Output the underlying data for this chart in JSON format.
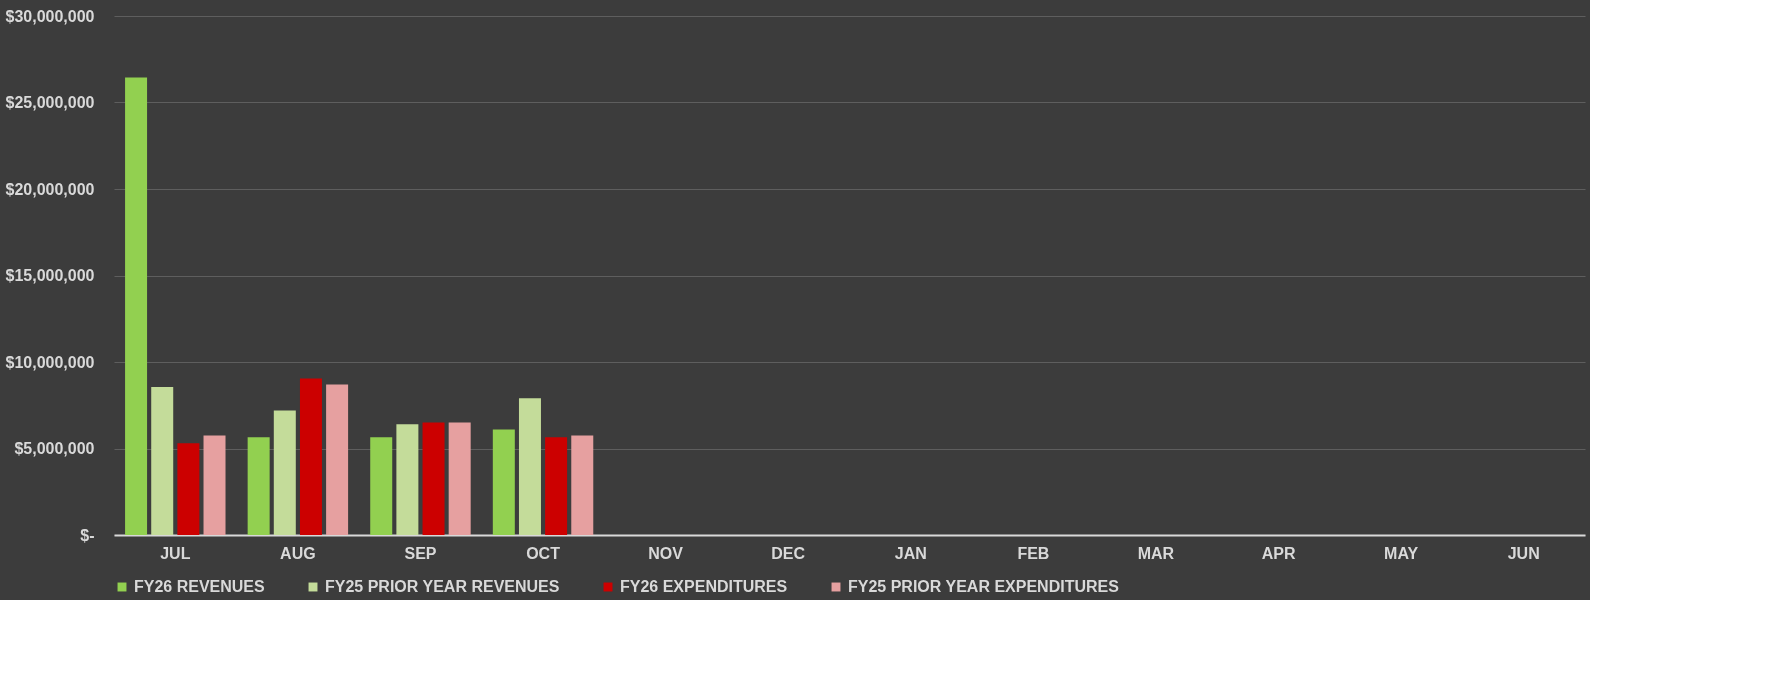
{
  "chart_data": {
    "type": "bar",
    "categories": [
      "JUL",
      "AUG",
      "SEP",
      "OCT",
      "NOV",
      "DEC",
      "JAN",
      "FEB",
      "MAR",
      "APR",
      "MAY",
      "JUN"
    ],
    "series": [
      {
        "name": "FY26 REVENUES",
        "color": "#92d050",
        "values": [
          26450000,
          5650000,
          5650000,
          6100000,
          null,
          null,
          null,
          null,
          null,
          null,
          null,
          null
        ]
      },
      {
        "name": "FY25 PRIOR YEAR REVENUES",
        "color": "#c4dc9a",
        "values": [
          8550000,
          7200000,
          6400000,
          7900000,
          null,
          null,
          null,
          null,
          null,
          null,
          null,
          null
        ]
      },
      {
        "name": "FY26 EXPENDITURES",
        "color": "#cc0000",
        "values": [
          5300000,
          9050000,
          6500000,
          5650000,
          null,
          null,
          null,
          null,
          null,
          null,
          null,
          null
        ]
      },
      {
        "name": "FY25 PRIOR YEAR EXPENDITURES",
        "color": "#e6a0a0",
        "values": [
          5750000,
          8700000,
          6500000,
          5750000,
          null,
          null,
          null,
          null,
          null,
          null,
          null,
          null
        ]
      }
    ],
    "ylim": [
      0,
      30000000
    ],
    "yticks": [
      {
        "value": 0,
        "label": "$-"
      },
      {
        "value": 5000000,
        "label": "$5,000,000"
      },
      {
        "value": 10000000,
        "label": "$10,000,000"
      },
      {
        "value": 15000000,
        "label": "$15,000,000"
      },
      {
        "value": 20000000,
        "label": "$20,000,000"
      },
      {
        "value": 25000000,
        "label": "$25,000,000"
      },
      {
        "value": 30000000,
        "label": "$30,000,000"
      }
    ],
    "grid": "y",
    "legend": "bottom"
  }
}
